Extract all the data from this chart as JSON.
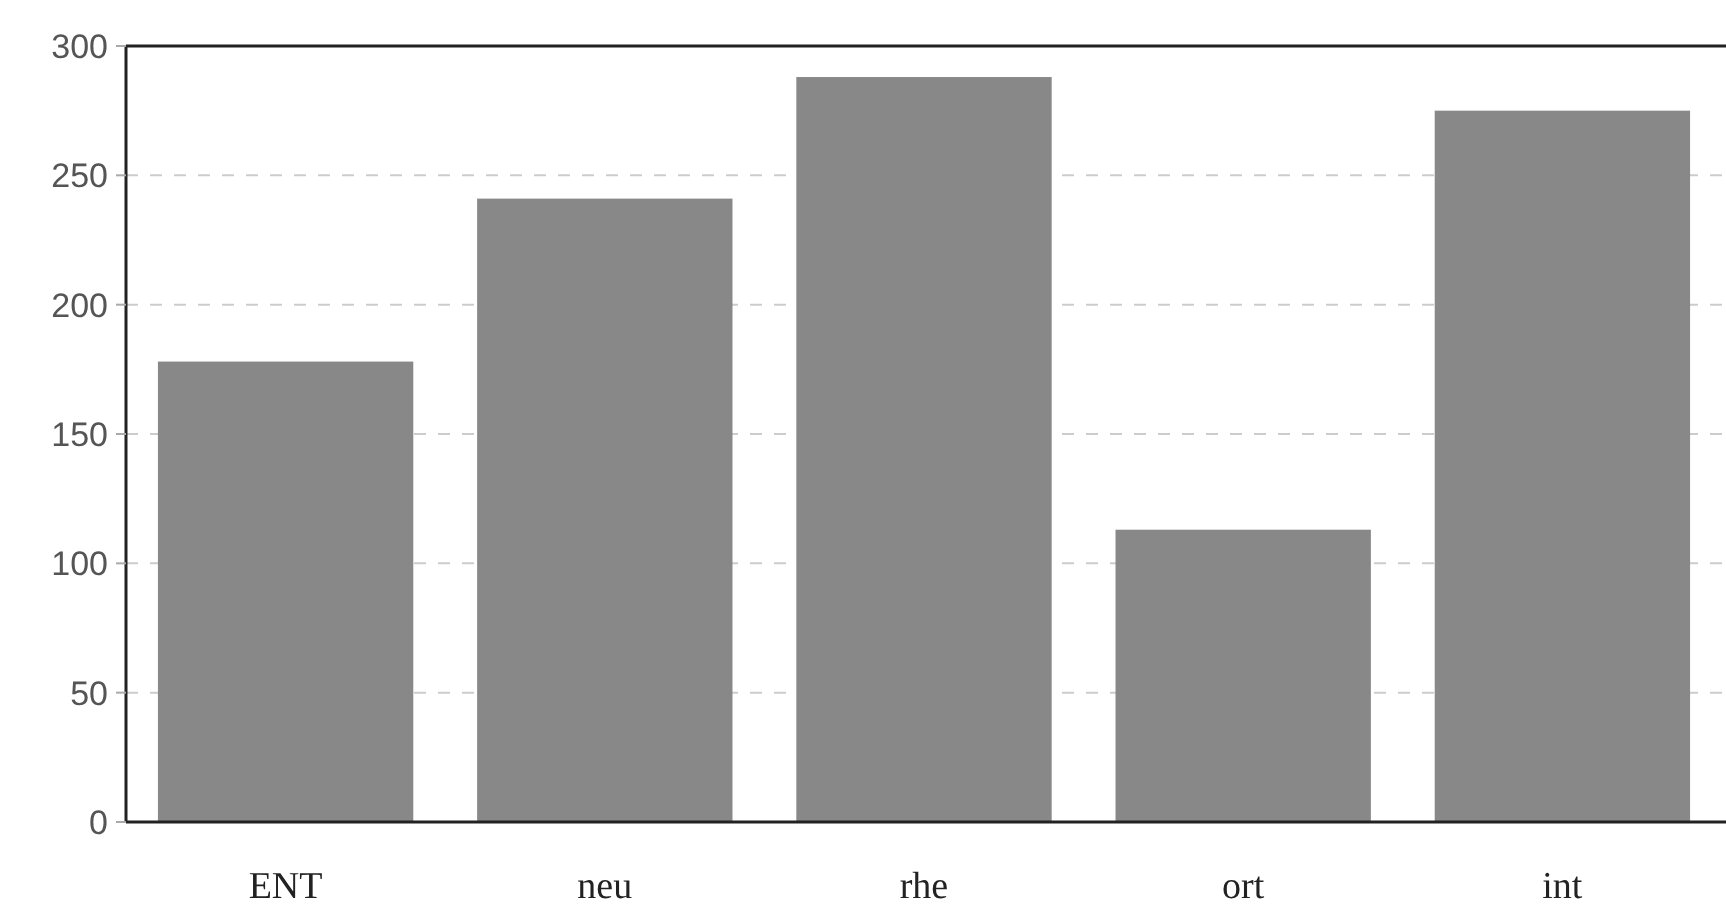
{
  "chart_data": {
    "type": "bar",
    "categories": [
      "ENT",
      "neu",
      "rhe",
      "ort",
      "int"
    ],
    "values": [
      178,
      241,
      288,
      113,
      275
    ],
    "color": "#888888",
    "ylim": [
      0,
      300
    ],
    "yticks": [
      0,
      50,
      100,
      150,
      200,
      250,
      300
    ],
    "grid": "y"
  }
}
